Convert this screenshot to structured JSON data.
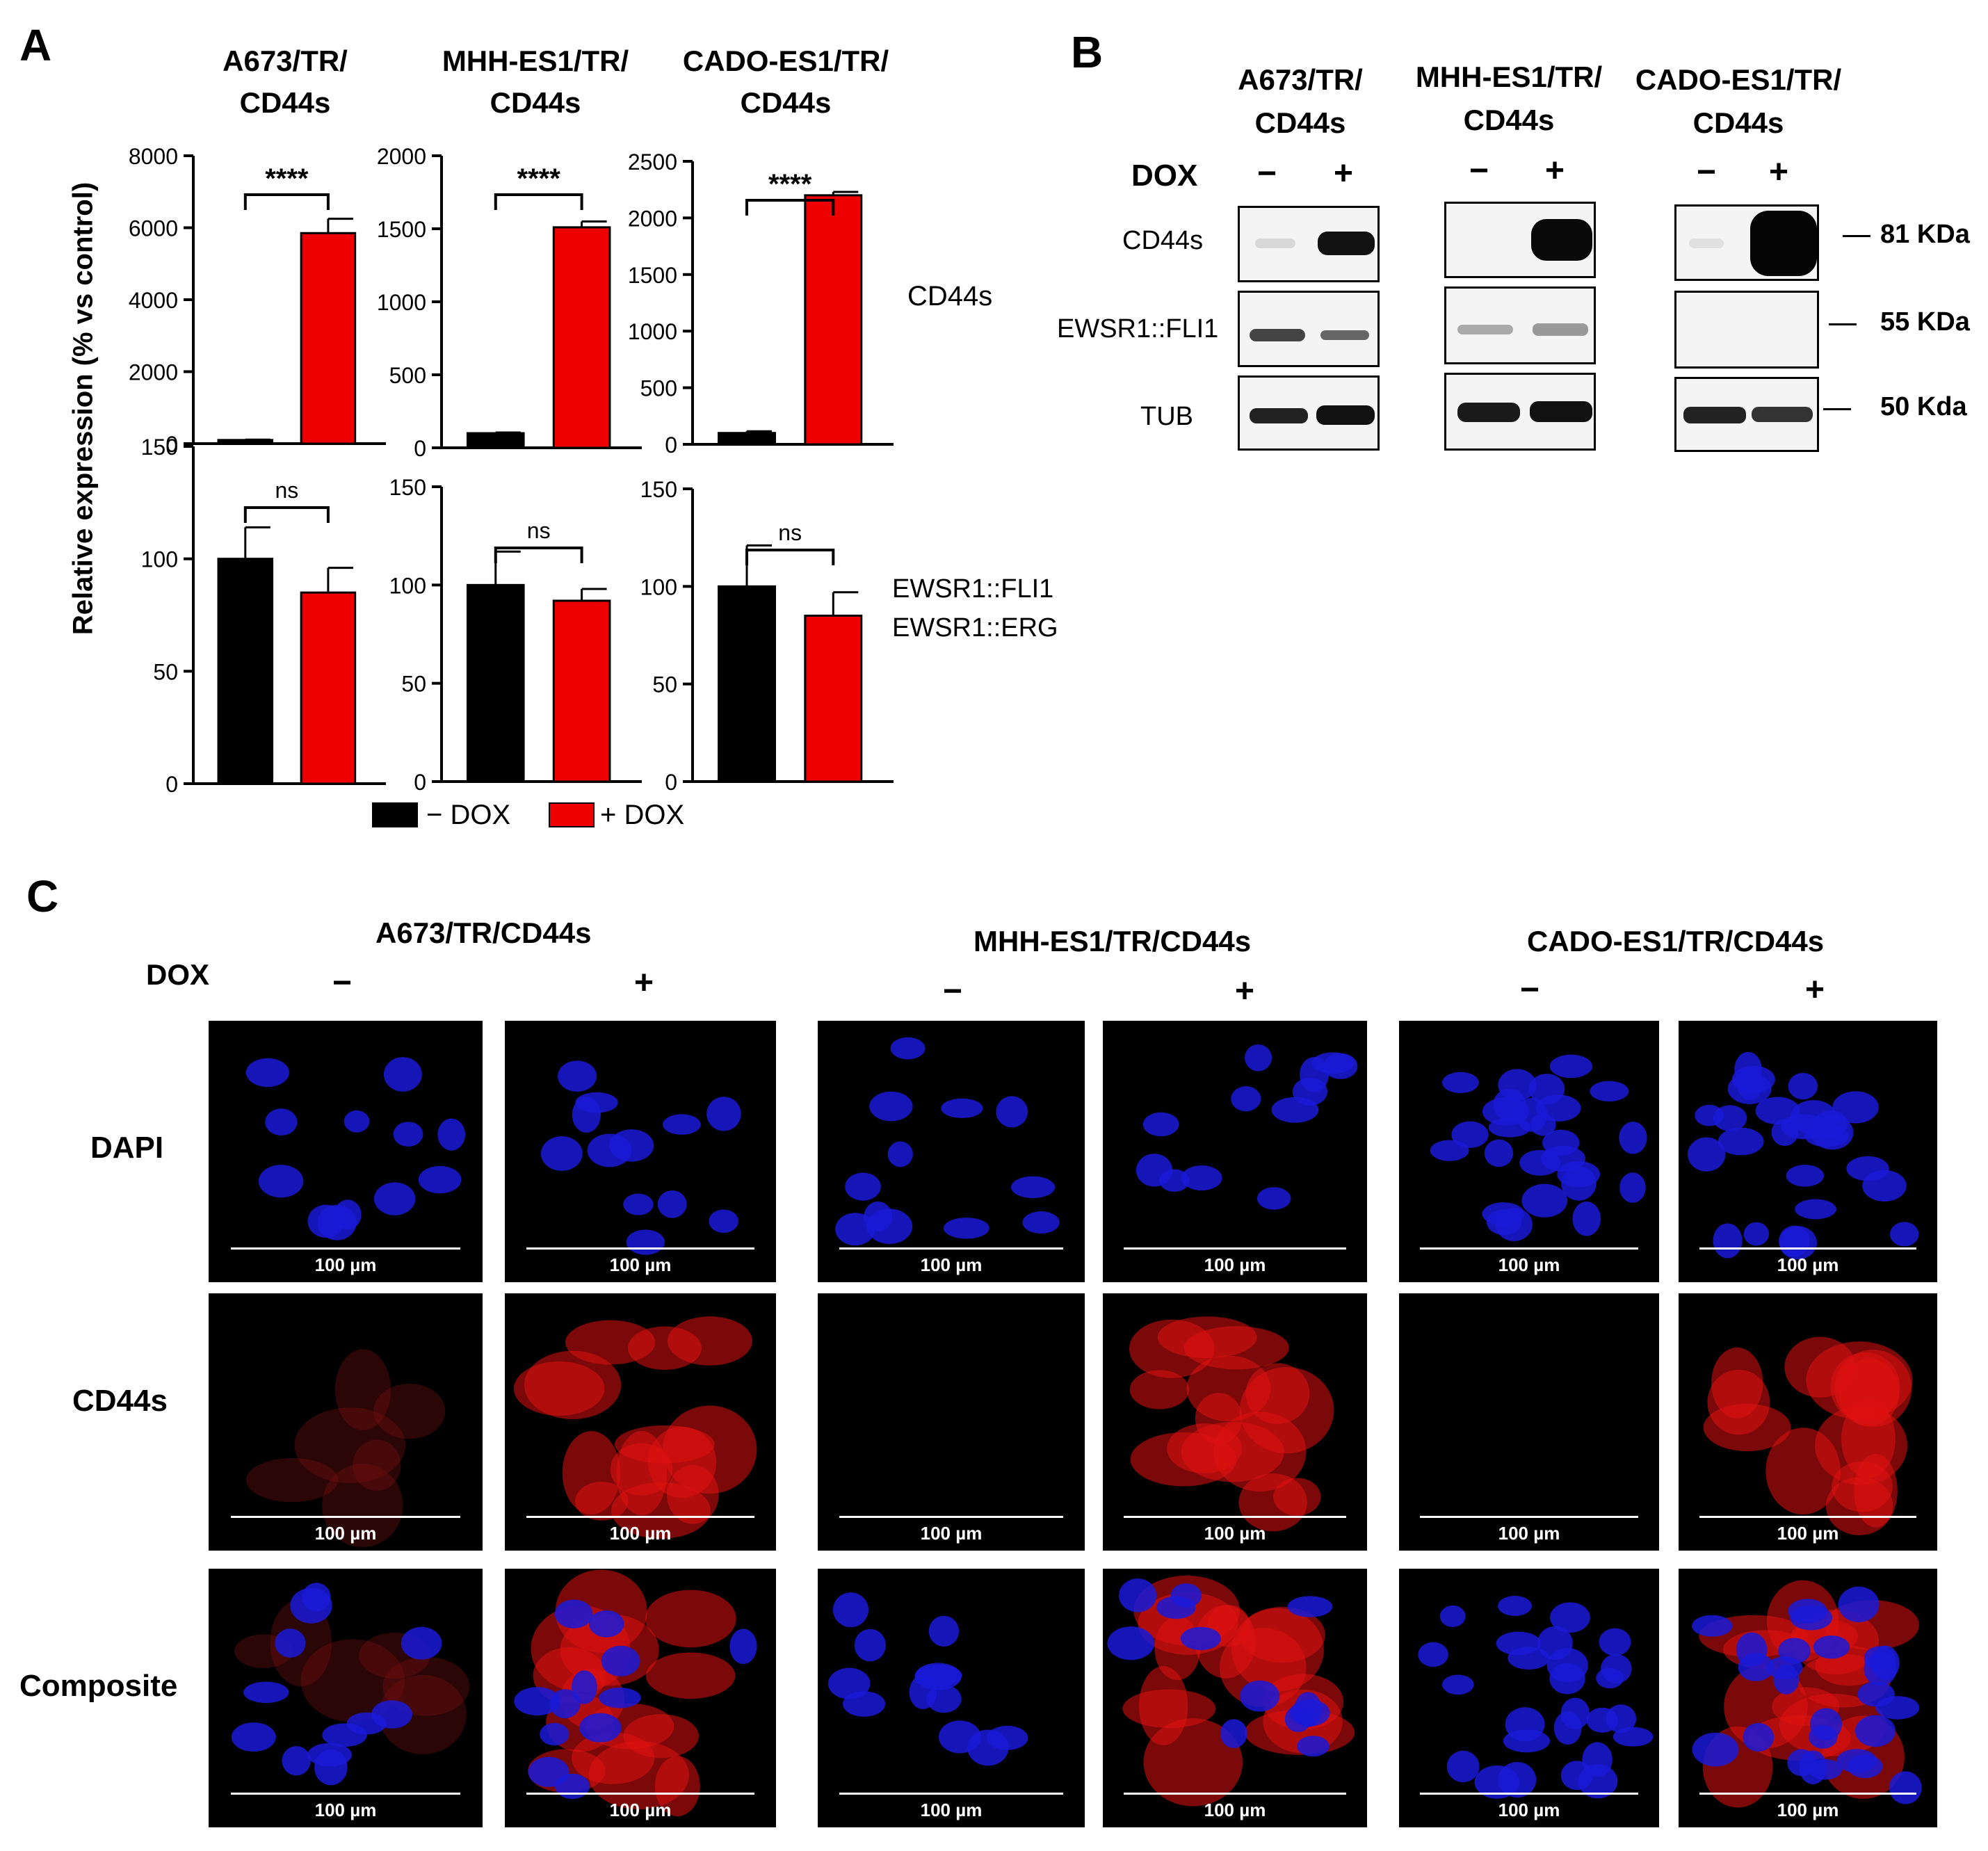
{
  "panel_letters": {
    "a": "A",
    "b": "B",
    "c": "C"
  },
  "panel_a": {
    "cell_lines": [
      "A673/TR/\nCD44s",
      "MHH-ES1/TR/\nCD44s",
      "CADO-ES1/TR/\nCD44s"
    ],
    "y_axis_label": "Relative expression (% vs control)",
    "row_labels": {
      "top": "CD44s",
      "bottom_line1": "EWSR1::FLI1",
      "bottom_line2": "EWSR1::ERG"
    },
    "legend": {
      "minus": "− DOX",
      "plus": "+ DOX"
    },
    "colors": {
      "minus": "#000000",
      "plus": "#ee0000"
    }
  },
  "chart_data": [
    {
      "type": "bar",
      "title": "A673/TR/ CD44s",
      "row": "CD44s",
      "categories": [
        "− DOX",
        "+ DOX"
      ],
      "series": [
        {
          "name": "− DOX",
          "values": [
            100,
            0
          ]
        },
        {
          "name": "+ DOX",
          "values": [
            0,
            5850
          ]
        }
      ],
      "values": [
        100,
        5850
      ],
      "errors": [
        10,
        400
      ],
      "ylim": [
        0,
        8000
      ],
      "yticks": [
        "0",
        "2000",
        "4000",
        "6000",
        "8000"
      ],
      "significance": "****"
    },
    {
      "type": "bar",
      "title": "MHH-ES1/TR/ CD44s",
      "row": "CD44s",
      "categories": [
        "− DOX",
        "+ DOX"
      ],
      "series": [
        {
          "name": "− DOX",
          "values": [
            100,
            0
          ]
        },
        {
          "name": "+ DOX",
          "values": [
            0,
            1510
          ]
        }
      ],
      "values": [
        100,
        1510
      ],
      "errors": [
        5,
        40
      ],
      "ylim": [
        0,
        2000
      ],
      "yticks": [
        "0",
        "500",
        "1000",
        "1500",
        "2000"
      ],
      "significance": "****"
    },
    {
      "type": "bar",
      "title": "CADO-ES1/TR/ CD44s",
      "row": "CD44s",
      "categories": [
        "− DOX",
        "+ DOX"
      ],
      "series": [
        {
          "name": "− DOX",
          "values": [
            100,
            0
          ]
        },
        {
          "name": "+ DOX",
          "values": [
            0,
            2200
          ]
        }
      ],
      "values": [
        100,
        2200
      ],
      "errors": [
        15,
        30
      ],
      "ylim": [
        0,
        2500
      ],
      "yticks": [
        "0",
        "500",
        "1000",
        "1500",
        "2000",
        "2500"
      ],
      "significance": "****"
    },
    {
      "type": "bar",
      "title": "A673/TR/ CD44s",
      "row": "EWSR1::FLI1",
      "categories": [
        "− DOX",
        "+ DOX"
      ],
      "series": [
        {
          "name": "− DOX",
          "values": [
            100,
            0
          ]
        },
        {
          "name": "+ DOX",
          "values": [
            0,
            85
          ]
        }
      ],
      "values": [
        100,
        85
      ],
      "errors": [
        14,
        11
      ],
      "ylim": [
        0,
        150
      ],
      "yticks": [
        "0",
        "50",
        "100",
        "150"
      ],
      "significance": "ns"
    },
    {
      "type": "bar",
      "title": "MHH-ES1/TR/ CD44s",
      "row": "EWSR1::FLI1",
      "categories": [
        "− DOX",
        "+ DOX"
      ],
      "series": [
        {
          "name": "− DOX",
          "values": [
            100,
            0
          ]
        },
        {
          "name": "+ DOX",
          "values": [
            0,
            92
          ]
        }
      ],
      "values": [
        100,
        92
      ],
      "errors": [
        17,
        6
      ],
      "ylim": [
        0,
        150
      ],
      "yticks": [
        "0",
        "50",
        "100",
        "150"
      ],
      "significance": "ns"
    },
    {
      "type": "bar",
      "title": "CADO-ES1/TR/ CD44s",
      "row": "EWSR1::ERG",
      "categories": [
        "− DOX",
        "+ DOX"
      ],
      "series": [
        {
          "name": "− DOX",
          "values": [
            100,
            0
          ]
        },
        {
          "name": "+ DOX",
          "values": [
            0,
            85
          ]
        }
      ],
      "values": [
        100,
        85
      ],
      "errors": [
        21,
        12
      ],
      "ylim": [
        0,
        150
      ],
      "yticks": [
        "0",
        "50",
        "100",
        "150"
      ],
      "significance": "ns"
    }
  ],
  "panel_b": {
    "cell_lines": [
      "A673/TR/\nCD44s",
      "MHH-ES1/TR/\nCD44s",
      "CADO-ES1/TR/\nCD44s"
    ],
    "dox_label": "DOX",
    "minus": "−",
    "plus": "+",
    "row_labels": [
      "CD44s",
      "EWSR1::FLI1",
      "TUB"
    ],
    "markers": [
      "81 KDa",
      "55 KDa",
      "50 Kda"
    ]
  },
  "panel_c": {
    "cell_lines": [
      "A673/TR/CD44s",
      "MHH-ES1/TR/CD44s",
      "CADO-ES1/TR/CD44s"
    ],
    "dox_label": "DOX",
    "minus": "−",
    "plus": "+",
    "row_labels": [
      "DAPI",
      "CD44s",
      "Composite"
    ],
    "scale_bar": "100 µm"
  }
}
